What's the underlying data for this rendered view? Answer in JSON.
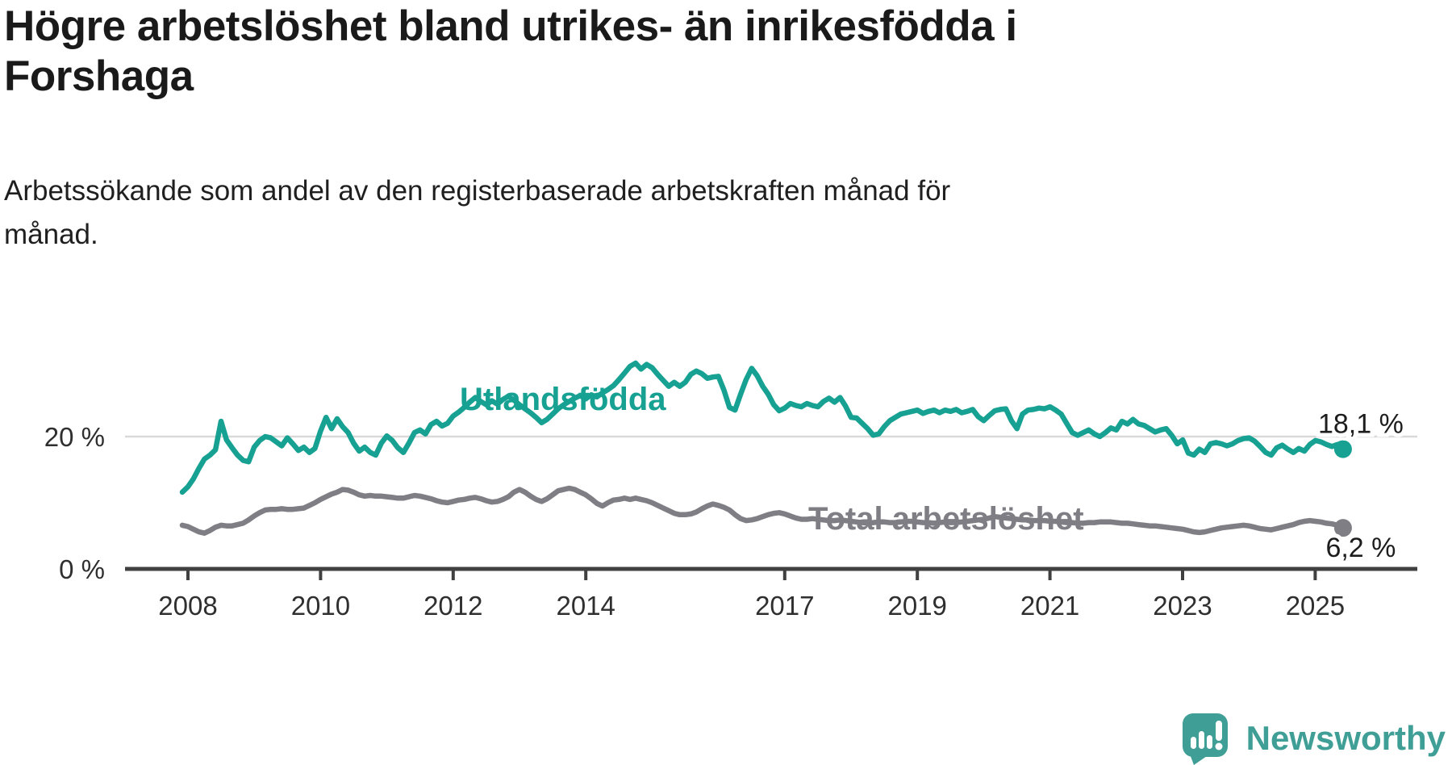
{
  "title": {
    "line1": "Högre arbetslöshet bland utrikes- än inrikesfödda i",
    "line2": "Forshaga"
  },
  "subtitle": {
    "line1": "Arbetssökande som andel av den registerbaserade arbetskraften månad för",
    "line2": "månad."
  },
  "branding": {
    "logo_text": "Newsworthy",
    "logo_icon": "speech-bubble-bar-chart-icon",
    "brand_color": "#3f9e95"
  },
  "colors": {
    "series_foreign": "#17a192",
    "series_total": "#7e7e84",
    "gridline": "#d9d9d9",
    "axis": "#404040",
    "text": "#1d1d1d"
  },
  "chart_data": {
    "type": "line",
    "title": "Högre arbetslöshet bland utrikes- än inrikesfödda i Forshaga",
    "subtitle": "Arbetssökande som andel av den registerbaserade arbetskraften månad för månad.",
    "x_unit": "month",
    "x_start": "2008-01",
    "x_end": "2025-07",
    "x_tick_years": [
      2008,
      2010,
      2012,
      2014,
      2017,
      2019,
      2021,
      2023,
      2025
    ],
    "y_ticks": [
      {
        "value": 0,
        "label": "0 %"
      },
      {
        "value": 20,
        "label": "20 %"
      }
    ],
    "gridline_values": [
      20
    ],
    "ylabel": "",
    "xlabel": "",
    "legend_position": "inline-labels",
    "series": [
      {
        "name": "Utlandsfödda",
        "end_label": "18,1 %",
        "last_value": 18.1,
        "color": "#17a192",
        "values": [
          11.6,
          12.4,
          13.6,
          15.2,
          16.6,
          17.2,
          18.0,
          22.3,
          19.5,
          18.3,
          17.2,
          16.4,
          16.2,
          18.4,
          19.4,
          20.0,
          19.8,
          19.2,
          18.6,
          19.8,
          18.9,
          17.9,
          18.4,
          17.6,
          18.2,
          20.8,
          22.9,
          21.2,
          22.7,
          21.5,
          20.6,
          19.0,
          17.8,
          18.4,
          17.6,
          17.2,
          19.0,
          20.1,
          19.4,
          18.3,
          17.6,
          19.0,
          20.6,
          21.0,
          20.4,
          21.8,
          22.3,
          21.6,
          22.0,
          23.1,
          23.7,
          24.4,
          25.2,
          25.9,
          25.3,
          24.8,
          25.4,
          24.9,
          25.6,
          26.1,
          25.5,
          24.8,
          24.2,
          23.6,
          22.9,
          22.1,
          22.6,
          23.4,
          24.2,
          24.8,
          25.3,
          25.8,
          26.2,
          25.7,
          26.3,
          26.0,
          26.6,
          27.1,
          27.7,
          28.6,
          29.6,
          30.6,
          31.1,
          30.2,
          30.9,
          30.4,
          29.4,
          28.5,
          27.6,
          28.2,
          27.6,
          28.2,
          29.4,
          29.9,
          29.5,
          28.8,
          29.0,
          29.1,
          27.0,
          24.4,
          24.0,
          26.4,
          28.6,
          30.3,
          29.2,
          27.6,
          26.4,
          24.8,
          23.9,
          24.3,
          25.0,
          24.7,
          24.5,
          25.0,
          24.7,
          24.5,
          25.3,
          25.8,
          25.2,
          25.9,
          24.6,
          22.9,
          22.8,
          22.0,
          21.2,
          20.2,
          20.4,
          21.5,
          22.4,
          22.9,
          23.4,
          23.6,
          23.8,
          24.0,
          23.5,
          23.8,
          24.0,
          23.6,
          24.0,
          23.8,
          24.1,
          23.6,
          23.8,
          24.1,
          23.0,
          22.4,
          23.2,
          23.9,
          24.1,
          24.2,
          22.4,
          21.2,
          23.4,
          24.0,
          24.1,
          24.3,
          24.2,
          24.5,
          24.0,
          23.4,
          22.0,
          20.6,
          20.2,
          20.6,
          21.0,
          20.4,
          20.0,
          20.6,
          21.3,
          21.0,
          22.3,
          21.9,
          22.6,
          21.9,
          21.7,
          21.2,
          20.7,
          21.0,
          21.2,
          20.2,
          18.9,
          19.5,
          17.5,
          17.2,
          18.1,
          17.6,
          18.9,
          19.1,
          18.9,
          18.6,
          18.9,
          19.4,
          19.7,
          19.8,
          19.3,
          18.5,
          17.6,
          17.2,
          18.3,
          18.7,
          18.1,
          17.6,
          18.2,
          17.8,
          18.8,
          19.4,
          19.2,
          18.8,
          18.5,
          18.8,
          18.1
        ]
      },
      {
        "name": "Total arbetslöshet",
        "end_label": "6,2 %",
        "last_value": 6.2,
        "color": "#7e7e84",
        "values": [
          6.6,
          6.4,
          6.0,
          5.6,
          5.4,
          5.8,
          6.3,
          6.6,
          6.5,
          6.5,
          6.7,
          6.9,
          7.4,
          8.0,
          8.5,
          8.9,
          9.0,
          9.0,
          9.1,
          9.0,
          9.0,
          9.1,
          9.2,
          9.6,
          10.0,
          10.5,
          10.9,
          11.3,
          11.6,
          12.0,
          11.9,
          11.6,
          11.2,
          11.0,
          11.1,
          11.0,
          11.0,
          10.9,
          10.8,
          10.7,
          10.7,
          10.9,
          11.1,
          11.0,
          10.8,
          10.6,
          10.3,
          10.1,
          10.0,
          10.2,
          10.4,
          10.5,
          10.7,
          10.8,
          10.6,
          10.3,
          10.1,
          10.2,
          10.5,
          10.9,
          11.6,
          12.0,
          11.6,
          11.0,
          10.5,
          10.2,
          10.6,
          11.2,
          11.8,
          12.0,
          12.2,
          12.0,
          11.6,
          11.2,
          10.6,
          9.9,
          9.5,
          10.0,
          10.4,
          10.5,
          10.7,
          10.5,
          10.7,
          10.5,
          10.3,
          10.0,
          9.6,
          9.2,
          8.8,
          8.4,
          8.2,
          8.2,
          8.3,
          8.6,
          9.1,
          9.5,
          9.8,
          9.6,
          9.3,
          8.9,
          8.2,
          7.6,
          7.3,
          7.4,
          7.6,
          7.9,
          8.2,
          8.4,
          8.5,
          8.3,
          8.0,
          7.7,
          7.5,
          7.5,
          7.6,
          7.5,
          7.4,
          7.3,
          7.3,
          7.4,
          7.3,
          7.2,
          7.1,
          7.0,
          6.9,
          7.0,
          7.1,
          7.1,
          7.0,
          7.0,
          7.1,
          7.2,
          7.2,
          7.1,
          7.0,
          7.0,
          6.9,
          7.0,
          7.1,
          7.0,
          7.0,
          7.1,
          7.2,
          7.3,
          7.4,
          7.5,
          7.7,
          7.9,
          7.8,
          7.7,
          7.6,
          7.5,
          7.4,
          7.4,
          7.3,
          7.3,
          7.3,
          7.2,
          7.2,
          7.1,
          7.0,
          7.0,
          6.9,
          6.9,
          7.0,
          7.0,
          7.1,
          7.1,
          7.1,
          7.0,
          6.9,
          6.9,
          6.8,
          6.7,
          6.6,
          6.5,
          6.5,
          6.4,
          6.3,
          6.2,
          6.1,
          6.0,
          5.8,
          5.6,
          5.5,
          5.6,
          5.8,
          6.0,
          6.2,
          6.3,
          6.4,
          6.5,
          6.6,
          6.5,
          6.3,
          6.1,
          6.0,
          5.9,
          6.1,
          6.3,
          6.5,
          6.7,
          7.0,
          7.2,
          7.3,
          7.2,
          7.1,
          6.9,
          6.8,
          6.6,
          6.2
        ]
      }
    ]
  }
}
